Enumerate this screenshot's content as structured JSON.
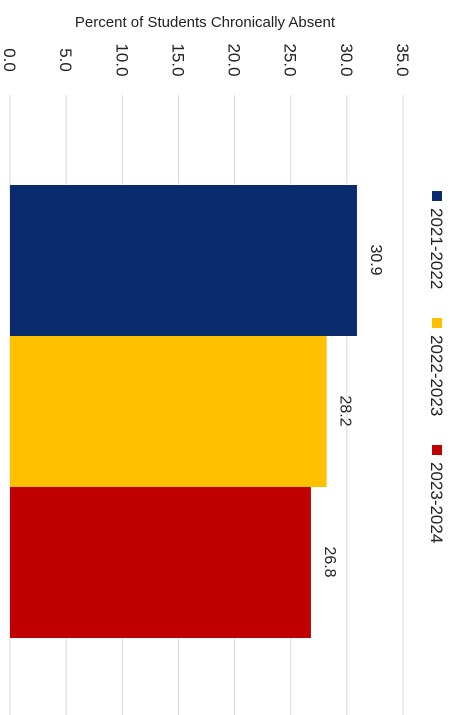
{
  "chart_data": {
    "type": "bar",
    "orientation": "horizontal",
    "title": "",
    "value_axis_label": "Percent of Students Chronically Absent",
    "category_axis_label": "",
    "series": [
      {
        "name": "2021-2022",
        "value": 30.9,
        "label": "30.9",
        "color": "#0b2b6f"
      },
      {
        "name": "2022-2023",
        "value": 28.2,
        "label": "28.2",
        "color": "#ffc000"
      },
      {
        "name": "2023-2024",
        "value": 26.8,
        "label": "26.8",
        "color": "#c00000"
      }
    ],
    "xlim": [
      0,
      35
    ],
    "ticks": [
      "0.0",
      "5.0",
      "10.0",
      "15.0",
      "20.0",
      "25.0",
      "30.0",
      "35.0"
    ],
    "tick_values": [
      0,
      5,
      10,
      15,
      20,
      25,
      30,
      35
    ],
    "grid": true,
    "legend_position": "right",
    "data_labels": true
  }
}
